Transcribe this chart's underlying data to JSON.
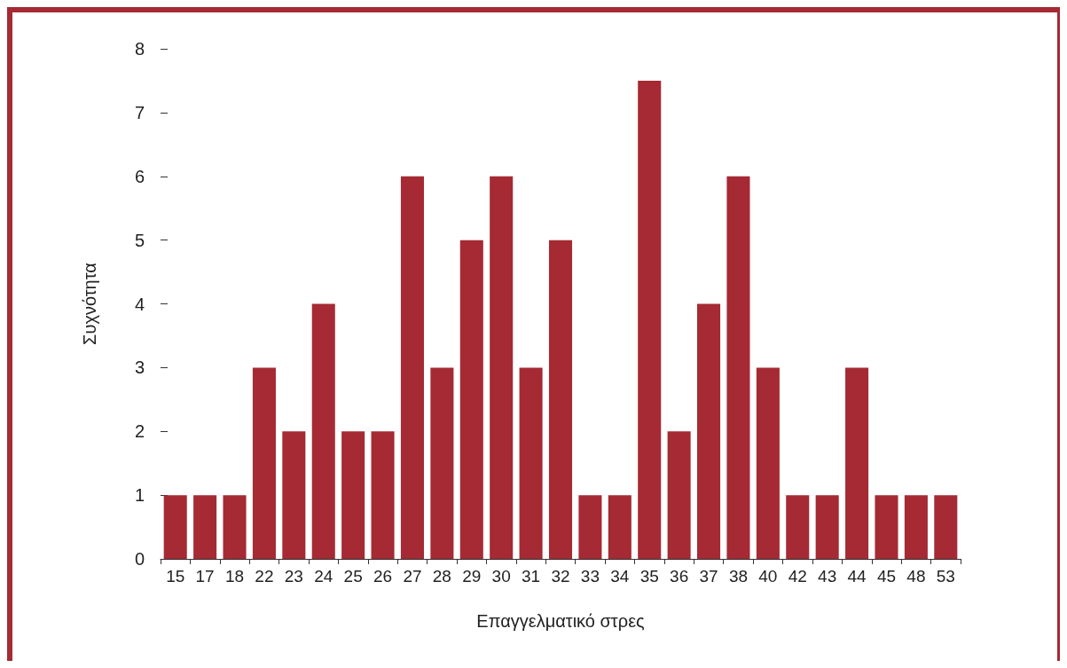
{
  "chart_data": {
    "type": "bar",
    "xlabel": "Επαγγελματικό στρες",
    "ylabel": "Συχνότητα",
    "categories": [
      "15",
      "17",
      "18",
      "22",
      "23",
      "24",
      "25",
      "26",
      "27",
      "28",
      "29",
      "30",
      "31",
      "32",
      "33",
      "34",
      "35",
      "36",
      "37",
      "38",
      "40",
      "42",
      "43",
      "44",
      "45",
      "48",
      "53"
    ],
    "values": [
      1,
      1,
      1,
      3,
      2,
      4,
      2,
      2,
      6,
      3,
      5,
      6,
      3,
      5,
      1,
      1,
      7.5,
      2,
      4,
      6,
      3,
      1,
      1,
      3,
      1,
      1,
      1
    ],
    "color": "#a52a33",
    "ylim": [
      0,
      8
    ],
    "yticks": [
      0,
      1,
      2,
      3,
      4,
      5,
      6,
      7,
      8
    ],
    "grid": false
  }
}
